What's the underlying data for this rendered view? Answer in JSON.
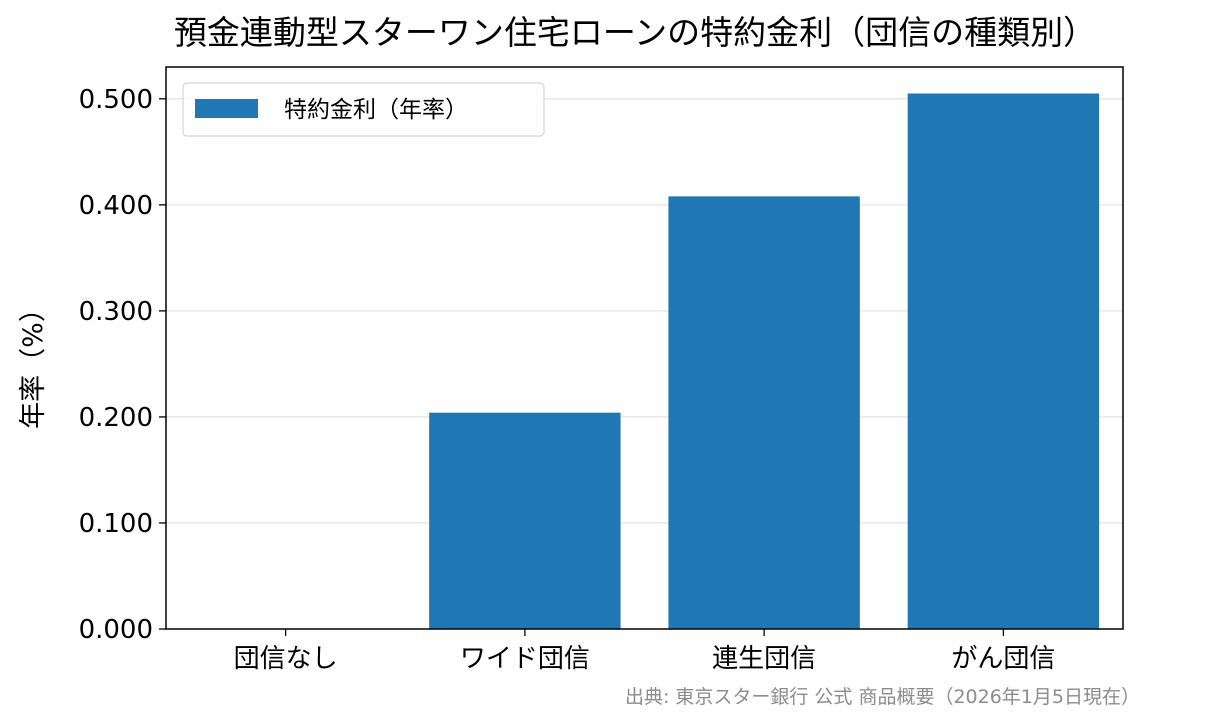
{
  "chart_data": {
    "type": "bar",
    "title": "預金連動型スターワン住宅ローンの特約金利（団信の種類別）",
    "xlabel": "",
    "ylabel": "年率（%）",
    "categories": [
      "団信なし",
      "ワイド団信",
      "連生団信",
      "がん団信"
    ],
    "series": [
      {
        "name": "特約金利（年率）",
        "values": [
          0.0,
          0.204,
          0.408,
          0.505
        ],
        "color": "#1f77b4"
      }
    ],
    "ylim": [
      0,
      0.53
    ],
    "yticks": [
      0.0,
      0.1,
      0.2,
      0.3,
      0.4,
      0.5
    ],
    "ytick_labels": [
      "0.000",
      "0.100",
      "0.200",
      "0.300",
      "0.400",
      "0.500"
    ],
    "grid": "horizontal",
    "legend_position": "top-left",
    "source_note": "出典: 東京スター銀行 公式 商品概要（2026年1月5日現在）"
  }
}
